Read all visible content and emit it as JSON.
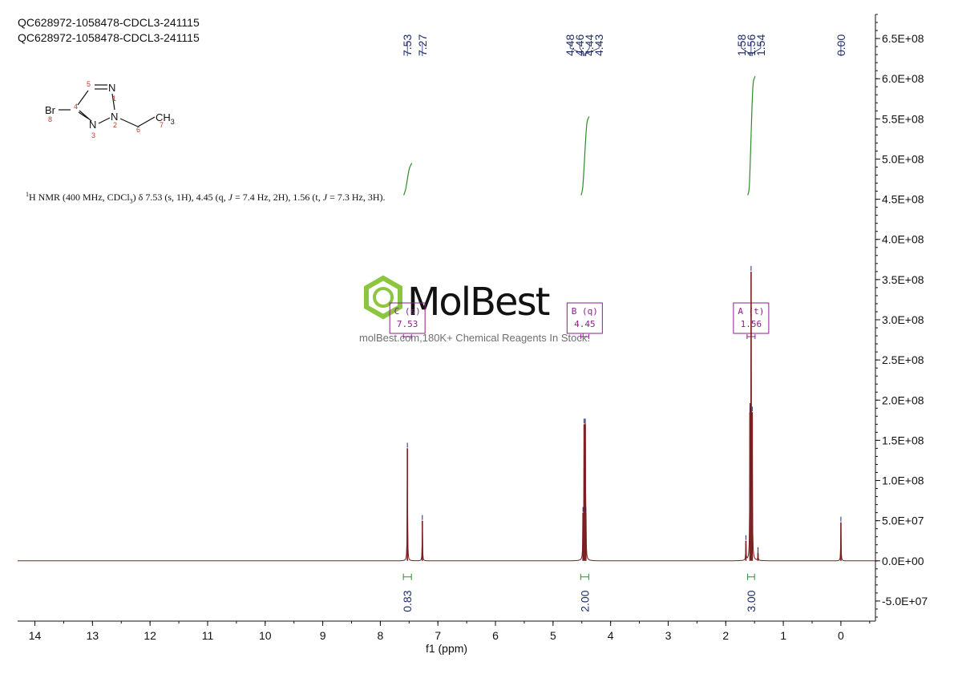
{
  "header": {
    "sample_line_1": "QC628972-1058478-CDCL3-241115",
    "sample_line_2": "QC628972-1058478-CDCL3-241115"
  },
  "description": {
    "nucleus_sup": "1",
    "text_a": "H NMR (400 MHz, CDCl",
    "sub": "3",
    "text_b": ") δ 7.53 (s, 1H), 4.45 (q, ",
    "j1": "J",
    "text_c": " = 7.4 Hz, 2H), 1.56 (t, ",
    "j2": "J",
    "text_d": " = 7.3 Hz, 3H)."
  },
  "structure": {
    "atoms": {
      "br": "Br",
      "n1": "N",
      "n2": "N",
      "n3": "N",
      "ch3": "CH",
      "ch3_sub": "3"
    },
    "numbers": [
      "1",
      "2",
      "3",
      "4",
      "5",
      "6",
      "7",
      "8"
    ]
  },
  "watermark": {
    "brand": "MolBest",
    "tagline": "molBest.com,180K+ Chemical Reagents In Stock."
  },
  "colors": {
    "spectrum": "#7a1f1f",
    "integral": "#2e8b2e",
    "peak_label": "#1f2a6b",
    "multiplet_box": "#8b1e8b",
    "logo_green": "#8cc63f"
  },
  "chart_data": {
    "type": "line",
    "xlabel": "f1 (ppm)",
    "xlim": [
      14.3,
      -0.6
    ],
    "ylim": [
      -75000000,
      680000000
    ],
    "x_ticks": [
      "14",
      "13",
      "12",
      "11",
      "10",
      "9",
      "8",
      "7",
      "6",
      "5",
      "4",
      "3",
      "2",
      "1",
      "0"
    ],
    "y_ticks": [
      {
        "value": 650000000,
        "label": "6.5E+08"
      },
      {
        "value": 600000000,
        "label": "6.0E+08"
      },
      {
        "value": 550000000,
        "label": "5.5E+08"
      },
      {
        "value": 500000000,
        "label": "5.0E+08"
      },
      {
        "value": 450000000,
        "label": "4.5E+08"
      },
      {
        "value": 400000000,
        "label": "4.0E+08"
      },
      {
        "value": 350000000,
        "label": "3.5E+08"
      },
      {
        "value": 300000000,
        "label": "3.0E+08"
      },
      {
        "value": 250000000,
        "label": "2.5E+08"
      },
      {
        "value": 200000000,
        "label": "2.0E+08"
      },
      {
        "value": 150000000,
        "label": "1.5E+08"
      },
      {
        "value": 100000000,
        "label": "1.0E+08"
      },
      {
        "value": 50000000,
        "label": "5.0E+07"
      },
      {
        "value": 0,
        "label": "0.0E+00"
      },
      {
        "value": -50000000,
        "label": "-5.0E+07"
      }
    ],
    "peaks": [
      {
        "ppm": 7.53,
        "intensity": 140000000
      },
      {
        "ppm": 7.27,
        "intensity": 50000000
      },
      {
        "ppm": 4.48,
        "intensity": 60000000
      },
      {
        "ppm": 4.46,
        "intensity": 170000000
      },
      {
        "ppm": 4.44,
        "intensity": 170000000
      },
      {
        "ppm": 4.43,
        "intensity": 60000000
      },
      {
        "ppm": 1.58,
        "intensity": 185000000
      },
      {
        "ppm": 1.56,
        "intensity": 360000000
      },
      {
        "ppm": 1.54,
        "intensity": 185000000
      },
      {
        "ppm": 1.65,
        "intensity": 25000000
      },
      {
        "ppm": 1.44,
        "intensity": 10000000
      },
      {
        "ppm": 0.0,
        "intensity": 48000000
      }
    ],
    "peak_label_groups": [
      {
        "labels": [
          "7.53",
          "7.27"
        ],
        "ppms": [
          7.53,
          7.27
        ]
      },
      {
        "labels": [
          "4.48",
          "4.46",
          "4.44",
          "4.43"
        ],
        "ppms": [
          4.48,
          4.46,
          4.44,
          4.43
        ]
      },
      {
        "labels": [
          "1.58",
          "1.56",
          "1.54"
        ],
        "ppms": [
          1.58,
          1.56,
          1.54
        ]
      },
      {
        "labels": [
          "0.00"
        ],
        "ppms": [
          0.0
        ]
      }
    ],
    "integrals": [
      {
        "ppm_from": 7.6,
        "ppm_to": 7.46,
        "value": "0.83",
        "curve_y_start": 455000000,
        "curve_y_end": 495000000
      },
      {
        "ppm_from": 4.52,
        "ppm_to": 4.38,
        "value": "2.00",
        "curve_y_start": 455000000,
        "curve_y_end": 553000000
      },
      {
        "ppm_from": 1.62,
        "ppm_to": 1.5,
        "value": "3.00",
        "curve_y_start": 455000000,
        "curve_y_end": 603000000
      }
    ],
    "multiplets": [
      {
        "letter": "C",
        "type": "(s)",
        "shift": "7.53",
        "ppm": 7.53
      },
      {
        "letter": "B",
        "type": "(q)",
        "shift": "4.45",
        "ppm": 4.45
      },
      {
        "letter": "A",
        "type": "(t)",
        "shift": "1.56",
        "ppm": 1.56
      }
    ]
  }
}
